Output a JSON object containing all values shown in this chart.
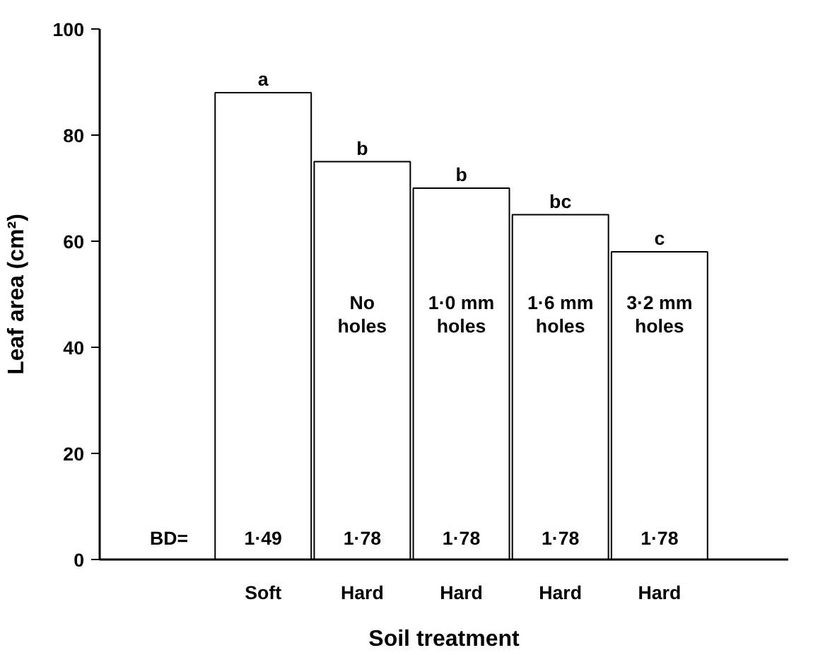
{
  "chart_data": {
    "type": "bar",
    "xlabel": "Soil treatment",
    "ylabel": "Leaf area (cm²)",
    "categories": [
      "Soft",
      "Hard",
      "Hard",
      "Hard",
      "Hard"
    ],
    "values": [
      88,
      75,
      70,
      65,
      58
    ],
    "color": "#ffffff",
    "value_labels": [
      "a",
      "b",
      "b",
      "bc",
      "c"
    ],
    "ylim": [
      0,
      100
    ],
    "yticks": [
      0,
      20,
      40,
      60,
      80,
      100
    ],
    "grid": false,
    "annotations": [
      "No\nholes",
      "1·0 mm\nholes",
      "1·6 mm\nholes",
      "3·2 mm\nholes",
      "BD=",
      "1·49",
      "1·78",
      "1·78",
      "1·78",
      "1·78"
    ]
  }
}
